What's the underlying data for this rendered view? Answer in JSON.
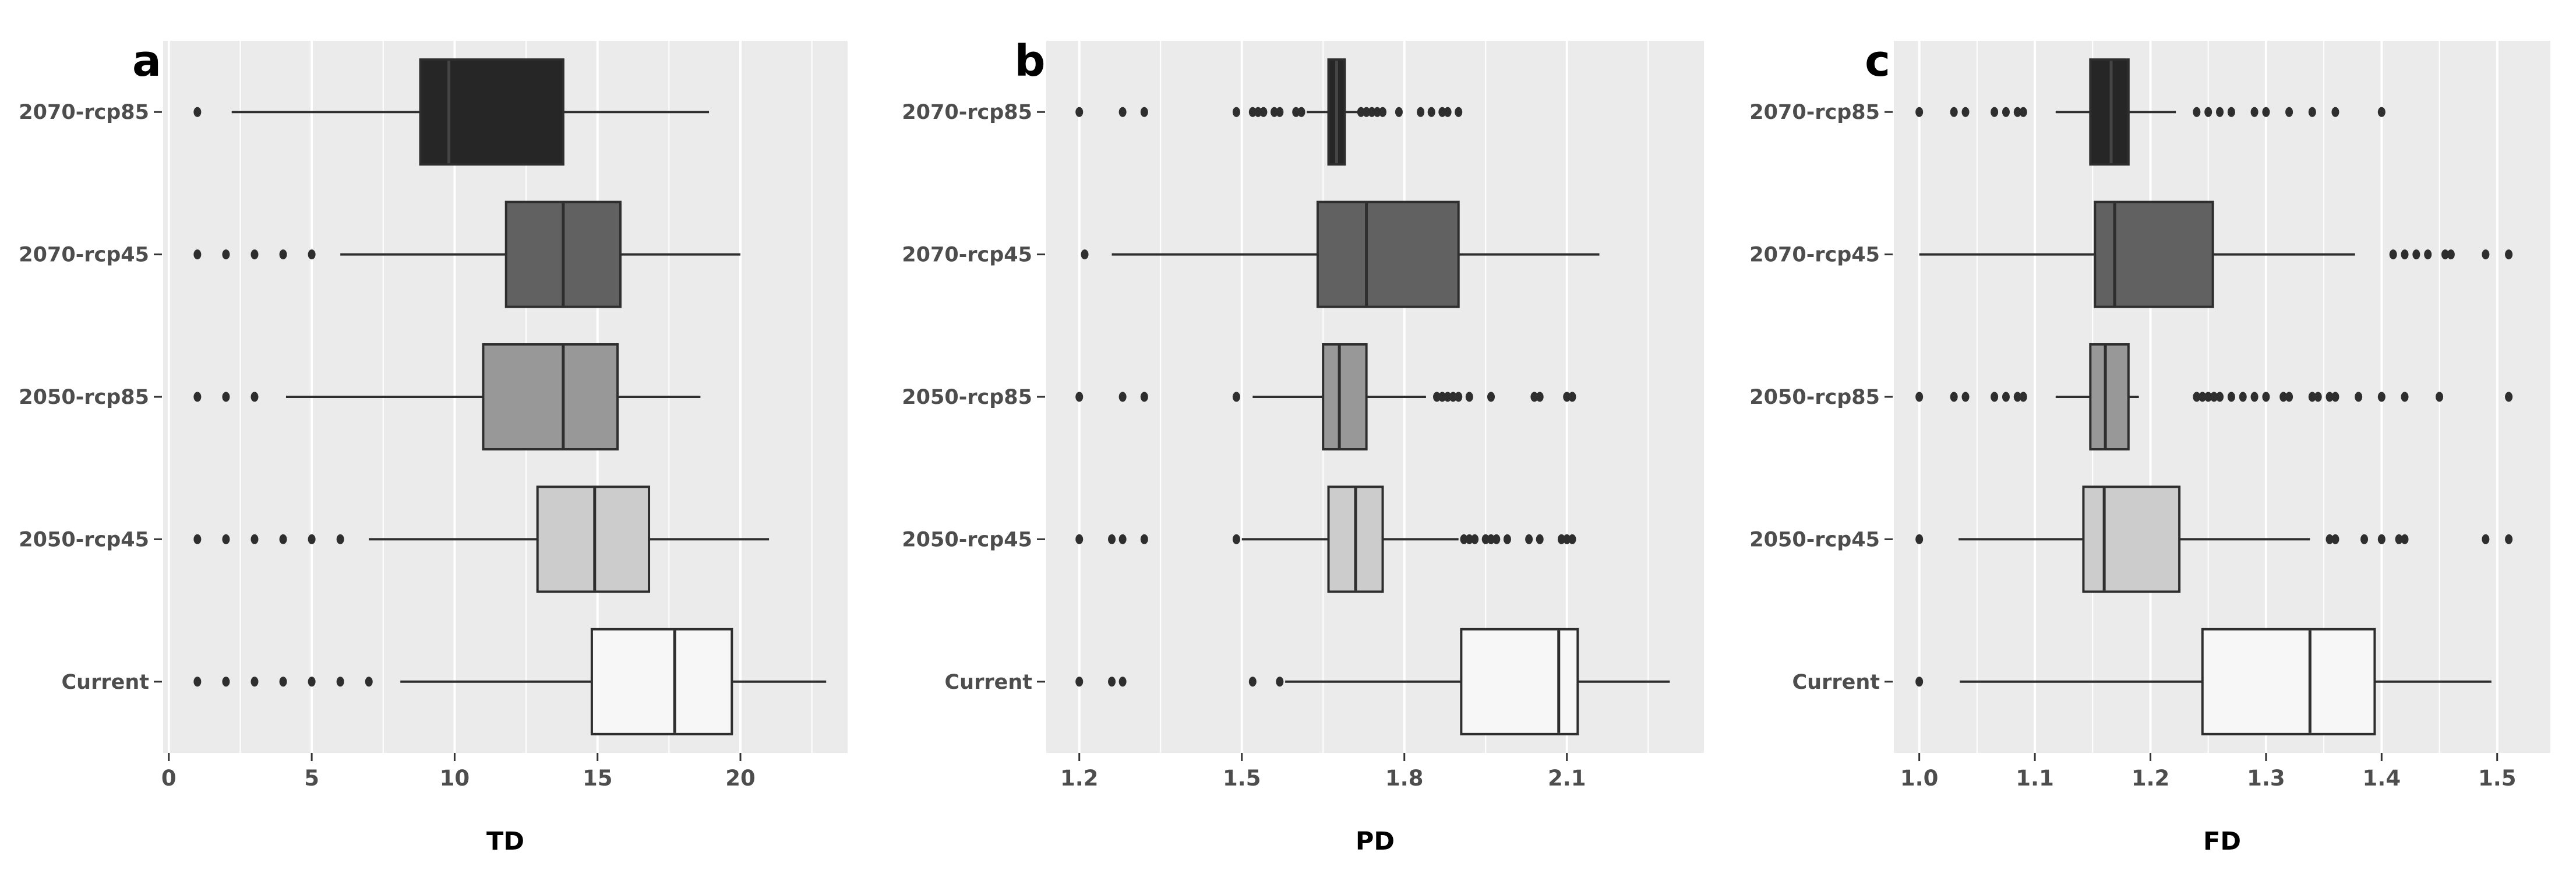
{
  "figure_kind": "horizontal-boxplot-figure",
  "style": {
    "panel_bg": "#ebebeb",
    "grid_major": "#ffffff",
    "grid_minor": "#ffffff",
    "line": "#2e2e2e",
    "tick_mark": "#333333",
    "label_color": "#4d4d4d",
    "title_color": "#000000",
    "outlier_color": "#2e2e2e"
  },
  "chart_data": [
    {
      "type": "boxplot",
      "orientation": "horizontal",
      "panel_label": "a",
      "xlabel": "TD",
      "xlim": [
        -0.2,
        23.75
      ],
      "xticks": [
        0,
        5,
        10,
        15,
        20
      ],
      "xtick_labels": [
        "0",
        "5",
        "10",
        "15",
        "20"
      ],
      "xminor": [
        2.5,
        7.5,
        12.5,
        17.5,
        22.5
      ],
      "categories": [
        "2070-rcp85",
        "2070-rcp45",
        "2050-rcp85",
        "2050-rcp45",
        "Current"
      ],
      "boxes": [
        {
          "category": "2070-rcp85",
          "fill": "#262626",
          "median_color": "#454545",
          "whisker_lo": 2.2,
          "q1": 8.8,
          "median": 9.8,
          "q3": 13.8,
          "whisker_hi": 18.9,
          "outliers": [
            1
          ]
        },
        {
          "category": "2070-rcp45",
          "fill": "#616161",
          "whisker_lo": 6.0,
          "q1": 11.8,
          "median": 13.8,
          "q3": 15.8,
          "whisker_hi": 20.0,
          "outliers": [
            1,
            2,
            3,
            4,
            5
          ]
        },
        {
          "category": "2050-rcp85",
          "fill": "#989898",
          "whisker_lo": 4.1,
          "q1": 11.0,
          "median": 13.8,
          "q3": 15.7,
          "whisker_hi": 18.6,
          "outliers": [
            1,
            2,
            3
          ]
        },
        {
          "category": "2050-rcp45",
          "fill": "#cccccc",
          "whisker_lo": 7.0,
          "q1": 12.9,
          "median": 14.9,
          "q3": 16.8,
          "whisker_hi": 21.0,
          "outliers": [
            1,
            2,
            3,
            4,
            5,
            6
          ]
        },
        {
          "category": "Current",
          "fill": "#f7f7f7",
          "whisker_lo": 8.1,
          "q1": 14.8,
          "median": 17.7,
          "q3": 19.7,
          "whisker_hi": 23.0,
          "outliers": [
            1,
            2,
            3,
            4,
            5,
            6,
            7
          ]
        }
      ]
    },
    {
      "type": "boxplot",
      "orientation": "horizontal",
      "panel_label": "b",
      "xlabel": "PD",
      "xlim": [
        1.139,
        2.353
      ],
      "xticks": [
        1.2,
        1.5,
        1.8,
        2.1
      ],
      "xtick_labels": [
        "1.2",
        "1.5",
        "1.8",
        "2.1"
      ],
      "xminor": [
        1.35,
        1.65,
        1.95,
        2.25
      ],
      "categories": [
        "2070-rcp85",
        "2070-rcp45",
        "2050-rcp85",
        "2050-rcp45",
        "Current"
      ],
      "boxes": [
        {
          "category": "2070-rcp85",
          "fill": "#262626",
          "median_color": "#454545",
          "whisker_lo": 1.62,
          "q1": 1.66,
          "median": 1.675,
          "q3": 1.69,
          "whisker_hi": 1.715,
          "outliers": [
            1.2,
            1.28,
            1.32,
            1.49,
            1.52,
            1.53,
            1.54,
            1.56,
            1.57,
            1.6,
            1.61,
            1.72,
            1.73,
            1.74,
            1.75,
            1.76,
            1.79,
            1.83,
            1.85,
            1.87,
            1.88,
            1.9
          ]
        },
        {
          "category": "2070-rcp45",
          "fill": "#616161",
          "whisker_lo": 1.26,
          "q1": 1.64,
          "median": 1.73,
          "q3": 1.9,
          "whisker_hi": 2.16,
          "outliers": [
            1.21
          ]
        },
        {
          "category": "2050-rcp85",
          "fill": "#989898",
          "whisker_lo": 1.52,
          "q1": 1.65,
          "median": 1.68,
          "q3": 1.73,
          "whisker_hi": 1.84,
          "outliers": [
            1.2,
            1.28,
            1.32,
            1.49,
            1.86,
            1.87,
            1.88,
            1.89,
            1.9,
            1.92,
            1.96,
            2.04,
            2.05,
            2.1,
            2.11
          ]
        },
        {
          "category": "2050-rcp45",
          "fill": "#cccccc",
          "whisker_lo": 1.5,
          "q1": 1.66,
          "median": 1.71,
          "q3": 1.76,
          "whisker_hi": 1.9,
          "outliers": [
            1.2,
            1.26,
            1.28,
            1.32,
            1.49,
            1.91,
            1.92,
            1.93,
            1.95,
            1.96,
            1.97,
            1.99,
            2.03,
            2.05,
            2.09,
            2.1,
            2.11
          ]
        },
        {
          "category": "Current",
          "fill": "#f7f7f7",
          "whisker_lo": 1.58,
          "q1": 1.905,
          "median": 2.085,
          "q3": 2.12,
          "whisker_hi": 2.29,
          "outliers": [
            1.2,
            1.26,
            1.28,
            1.52,
            1.57
          ]
        }
      ]
    },
    {
      "type": "boxplot",
      "orientation": "horizontal",
      "panel_label": "c",
      "xlabel": "FD",
      "xlim": [
        0.978,
        1.546
      ],
      "xticks": [
        1.0,
        1.1,
        1.2,
        1.3,
        1.4,
        1.5
      ],
      "xtick_labels": [
        "1.0",
        "1.1",
        "1.2",
        "1.3",
        "1.4",
        "1.5"
      ],
      "xminor": [
        1.05,
        1.15,
        1.25,
        1.35,
        1.45
      ],
      "categories": [
        "2070-rcp85",
        "2070-rcp45",
        "2050-rcp85",
        "2050-rcp45",
        "Current"
      ],
      "boxes": [
        {
          "category": "2070-rcp85",
          "fill": "#262626",
          "median_color": "#454545",
          "whisker_lo": 1.118,
          "q1": 1.148,
          "median": 1.166,
          "q3": 1.181,
          "whisker_hi": 1.222,
          "outliers": [
            1.0,
            1.03,
            1.04,
            1.065,
            1.075,
            1.085,
            1.09,
            1.24,
            1.25,
            1.26,
            1.27,
            1.29,
            1.3,
            1.32,
            1.34,
            1.36,
            1.4
          ]
        },
        {
          "category": "2070-rcp45",
          "fill": "#616161",
          "whisker_lo": 1.0,
          "q1": 1.152,
          "median": 1.169,
          "q3": 1.254,
          "whisker_hi": 1.377,
          "outliers": [
            1.41,
            1.42,
            1.43,
            1.44,
            1.455,
            1.46,
            1.49,
            1.51
          ]
        },
        {
          "category": "2050-rcp85",
          "fill": "#989898",
          "whisker_lo": 1.118,
          "q1": 1.148,
          "median": 1.161,
          "q3": 1.181,
          "whisker_hi": 1.19,
          "outliers": [
            1.0,
            1.03,
            1.04,
            1.065,
            1.075,
            1.085,
            1.09,
            1.24,
            1.245,
            1.25,
            1.255,
            1.26,
            1.27,
            1.28,
            1.29,
            1.3,
            1.315,
            1.32,
            1.34,
            1.345,
            1.355,
            1.36,
            1.38,
            1.4,
            1.42,
            1.45,
            1.51
          ]
        },
        {
          "category": "2050-rcp45",
          "fill": "#cccccc",
          "whisker_lo": 1.034,
          "q1": 1.142,
          "median": 1.16,
          "q3": 1.225,
          "whisker_hi": 1.338,
          "outliers": [
            1.0,
            1.355,
            1.36,
            1.385,
            1.4,
            1.415,
            1.42,
            1.49,
            1.51
          ]
        },
        {
          "category": "Current",
          "fill": "#f7f7f7",
          "whisker_lo": 1.035,
          "q1": 1.245,
          "median": 1.338,
          "q3": 1.394,
          "whisker_hi": 1.495,
          "outliers": [
            1.0
          ]
        }
      ]
    }
  ]
}
